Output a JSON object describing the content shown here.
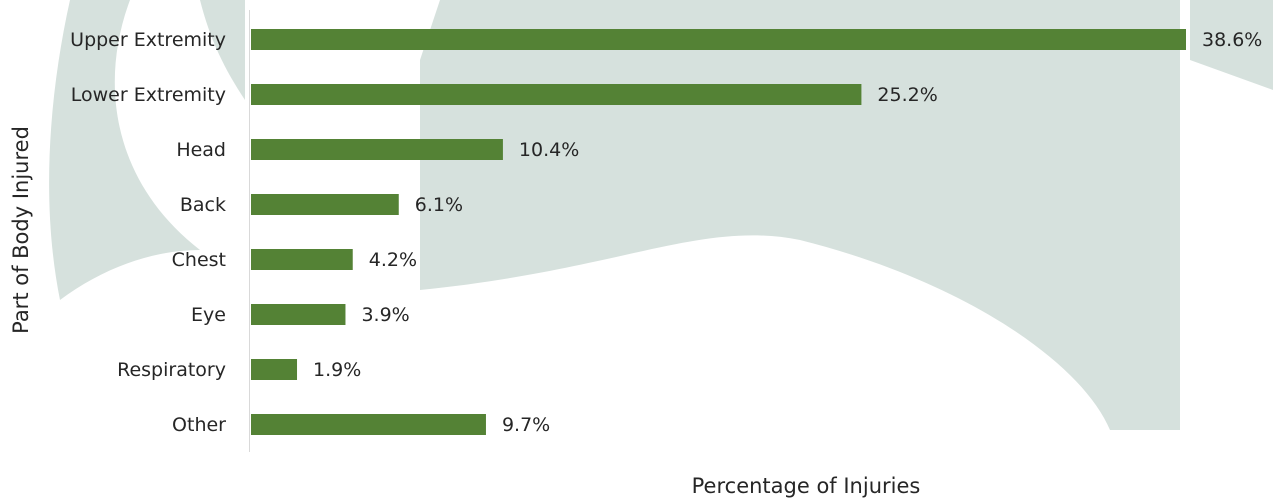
{
  "chart_data": {
    "type": "bar",
    "orientation": "horizontal",
    "x_label": "Percentage of Injuries",
    "y_label": "Part of Body Injured",
    "categories": [
      "Upper Extremity",
      "Lower Extremity",
      "Head",
      "Back",
      "Chest",
      "Eye",
      "Respiratory",
      "Other"
    ],
    "values": [
      38.6,
      25.2,
      10.4,
      6.1,
      4.2,
      3.9,
      1.9,
      9.7
    ],
    "value_labels": [
      "38.6%",
      "25.2%",
      "10.4%",
      "6.1%",
      "4.2%",
      "3.9%",
      "1.9%",
      "9.7%"
    ],
    "color": "#548235"
  }
}
